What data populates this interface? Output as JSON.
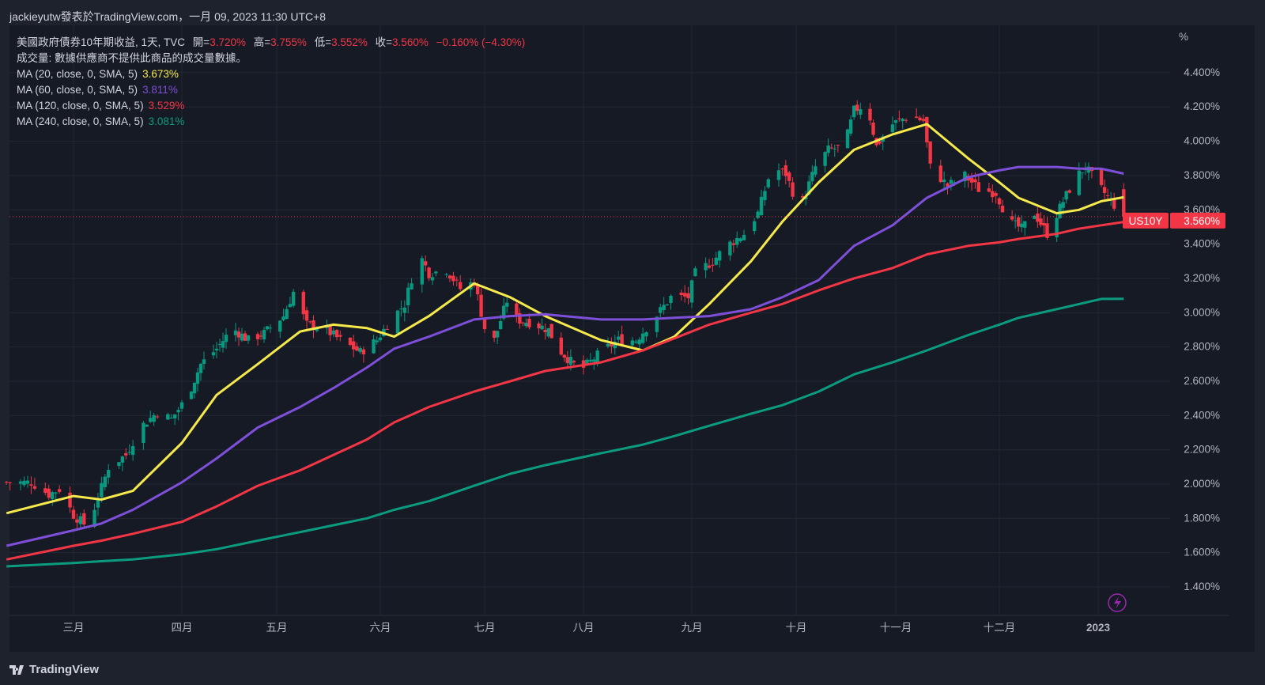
{
  "header": {
    "publisher": "jackieyutw發表於TradingView.com，一月 09, 2023 11:30 UTC+8"
  },
  "legend": {
    "symbol_desc": "美國政府債券10年期收益, 1天, TVC",
    "open_label": "開=",
    "open": "3.720%",
    "high_label": "高=",
    "high": "3.755%",
    "low_label": "低=",
    "low": "3.552%",
    "close_label": "收=",
    "close": "3.560%",
    "change": "−0.160% (−4.30%)",
    "volume_note": "成交量: 數據供應商不提供此商品的成交量數據。",
    "ma": [
      {
        "label": "MA (20, close, 0, SMA, 5)",
        "value": "3.673%",
        "color": "#f5e94b"
      },
      {
        "label": "MA (60, close, 0, SMA, 5)",
        "value": "3.811%",
        "color": "#7e4fd8"
      },
      {
        "label": "MA (120, close, 0, SMA, 5)",
        "value": "3.529%",
        "color": "#f23645"
      },
      {
        "label": "MA (240, close, 0, SMA, 5)",
        "value": "3.081%",
        "color": "#0b9b7e"
      }
    ]
  },
  "price_tag": {
    "symbol": "US10Y",
    "value": "3.560%"
  },
  "brand": "TradingView",
  "colors": {
    "up": "#089981",
    "down": "#f23645",
    "background": "#161a25",
    "grid": "#232733"
  },
  "chart_data": {
    "type": "candlestick",
    "ylabel": "%",
    "ylim": [
      1.3,
      4.5
    ],
    "y_ticks": [
      "1.400%",
      "1.600%",
      "1.800%",
      "2.000%",
      "2.200%",
      "2.400%",
      "2.600%",
      "2.800%",
      "3.000%",
      "3.200%",
      "3.400%",
      "3.600%",
      "3.800%",
      "4.000%",
      "4.200%",
      "4.400%"
    ],
    "x_ticks": [
      {
        "label": "三月",
        "date": "2022-03-01"
      },
      {
        "label": "四月",
        "date": "2022-04-01"
      },
      {
        "label": "五月",
        "date": "2022-05-01"
      },
      {
        "label": "六月",
        "date": "2022-06-01"
      },
      {
        "label": "七月",
        "date": "2022-07-01"
      },
      {
        "label": "八月",
        "date": "2022-08-01"
      },
      {
        "label": "九月",
        "date": "2022-09-01"
      },
      {
        "label": "十月",
        "date": "2022-10-01"
      },
      {
        "label": "十一月",
        "date": "2022-11-01"
      },
      {
        "label": "十二月",
        "date": "2022-12-01"
      },
      {
        "label": "2023",
        "date": "2023-01-01"
      }
    ],
    "grid": true,
    "close_path": [
      [
        "2022-02-10",
        2.01
      ],
      [
        "2022-02-17",
        2.01
      ],
      [
        "2022-02-22",
        1.94
      ],
      [
        "2022-02-25",
        1.97
      ],
      [
        "2022-03-01",
        1.82
      ],
      [
        "2022-03-05",
        1.75
      ],
      [
        "2022-03-08",
        1.92
      ],
      [
        "2022-03-11",
        2.1
      ],
      [
        "2022-03-16",
        2.17
      ],
      [
        "2022-03-20",
        2.33
      ],
      [
        "2022-03-25",
        2.42
      ],
      [
        "2022-03-29",
        2.38
      ],
      [
        "2022-04-03",
        2.52
      ],
      [
        "2022-04-07",
        2.7
      ],
      [
        "2022-04-12",
        2.79
      ],
      [
        "2022-04-17",
        2.91
      ],
      [
        "2022-04-22",
        2.84
      ],
      [
        "2022-04-27",
        2.88
      ],
      [
        "2022-05-03",
        2.98
      ],
      [
        "2022-05-06",
        3.12
      ],
      [
        "2022-05-10",
        2.93
      ],
      [
        "2022-05-15",
        2.91
      ],
      [
        "2022-05-20",
        2.84
      ],
      [
        "2022-05-26",
        2.77
      ],
      [
        "2022-05-31",
        2.84
      ],
      [
        "2022-06-04",
        2.96
      ],
      [
        "2022-06-08",
        3.05
      ],
      [
        "2022-06-12",
        3.35
      ],
      [
        "2022-06-15",
        3.23
      ],
      [
        "2022-06-20",
        3.25
      ],
      [
        "2022-06-24",
        3.14
      ],
      [
        "2022-06-28",
        3.18
      ],
      [
        "2022-07-01",
        2.91
      ],
      [
        "2022-07-04",
        2.84
      ],
      [
        "2022-07-08",
        3.07
      ],
      [
        "2022-07-11",
        2.96
      ],
      [
        "2022-07-16",
        2.94
      ],
      [
        "2022-07-21",
        2.9
      ],
      [
        "2022-07-24",
        2.79
      ],
      [
        "2022-07-31",
        2.66
      ],
      [
        "2022-08-06",
        2.77
      ],
      [
        "2022-08-11",
        2.84
      ],
      [
        "2022-08-16",
        2.84
      ],
      [
        "2022-08-21",
        2.96
      ],
      [
        "2022-08-26",
        3.09
      ],
      [
        "2022-08-31",
        3.09
      ],
      [
        "2022-09-02",
        3.23
      ],
      [
        "2022-09-07",
        3.3
      ],
      [
        "2022-09-11",
        3.39
      ],
      [
        "2022-09-16",
        3.46
      ],
      [
        "2022-09-20",
        3.58
      ],
      [
        "2022-09-24",
        3.85
      ],
      [
        "2022-09-28",
        3.81
      ],
      [
        "2022-10-02",
        3.6
      ],
      [
        "2022-10-07",
        3.85
      ],
      [
        "2022-10-11",
        3.95
      ],
      [
        "2022-10-16",
        3.97
      ],
      [
        "2022-10-19",
        4.18
      ],
      [
        "2022-10-23",
        4.22
      ],
      [
        "2022-10-26",
        3.97
      ],
      [
        "2022-10-30",
        4.09
      ],
      [
        "2022-11-05",
        4.15
      ],
      [
        "2022-11-09",
        4.12
      ],
      [
        "2022-11-11",
        3.85
      ],
      [
        "2022-11-16",
        3.74
      ],
      [
        "2022-11-21",
        3.8
      ],
      [
        "2022-11-25",
        3.72
      ],
      [
        "2022-11-30",
        3.7
      ],
      [
        "2022-12-04",
        3.53
      ],
      [
        "2022-12-08",
        3.49
      ],
      [
        "2022-12-12",
        3.58
      ],
      [
        "2022-12-16",
        3.46
      ],
      [
        "2022-12-21",
        3.65
      ],
      [
        "2022-12-25",
        3.79
      ],
      [
        "2022-12-28",
        3.85
      ],
      [
        "2023-01-02",
        3.72
      ],
      [
        "2023-01-09",
        3.56
      ]
    ],
    "last_candle": {
      "date": "2023-01-09",
      "open": 3.72,
      "high": 3.755,
      "low": 3.552,
      "close": 3.56
    },
    "ma_dates": [
      "2022-02-10",
      "2022-03-01",
      "2022-03-09",
      "2022-03-18",
      "2022-04-01",
      "2022-04-12",
      "2022-04-25",
      "2022-05-08",
      "2022-05-18",
      "2022-05-28",
      "2022-06-05",
      "2022-06-15",
      "2022-06-28",
      "2022-07-09",
      "2022-07-20",
      "2022-08-06",
      "2022-08-18",
      "2022-08-27",
      "2022-09-06",
      "2022-09-18",
      "2022-09-27",
      "2022-10-08",
      "2022-10-19",
      "2022-10-31",
      "2022-11-10",
      "2022-11-22",
      "2022-12-01",
      "2022-12-07",
      "2022-12-19",
      "2022-12-26",
      "2023-01-02",
      "2023-01-09"
    ],
    "series": [
      {
        "name": "MA (20, close, 0, SMA, 5)",
        "color": "#f5e94b",
        "values": [
          1.83,
          1.93,
          1.91,
          1.96,
          2.24,
          2.52,
          2.7,
          2.89,
          2.93,
          2.91,
          2.86,
          2.98,
          3.17,
          3.09,
          2.98,
          2.84,
          2.78,
          2.86,
          3.05,
          3.3,
          3.53,
          3.76,
          3.95,
          4.04,
          4.1,
          3.9,
          3.76,
          3.67,
          3.58,
          3.6,
          3.65,
          3.673
        ]
      },
      {
        "name": "MA (60, close, 0, SMA, 5)",
        "color": "#7e4fd8",
        "values": [
          1.64,
          1.73,
          1.77,
          1.85,
          2.01,
          2.15,
          2.33,
          2.45,
          2.56,
          2.68,
          2.79,
          2.86,
          2.96,
          2.98,
          2.99,
          2.96,
          2.96,
          2.97,
          2.98,
          3.02,
          3.09,
          3.19,
          3.39,
          3.51,
          3.67,
          3.79,
          3.83,
          3.85,
          3.85,
          3.84,
          3.84,
          3.811
        ]
      },
      {
        "name": "MA (120, close, 0, SMA, 5)",
        "color": "#f23645",
        "values": [
          1.56,
          1.64,
          1.67,
          1.71,
          1.78,
          1.87,
          1.99,
          2.08,
          2.17,
          2.26,
          2.36,
          2.45,
          2.54,
          2.6,
          2.66,
          2.71,
          2.78,
          2.85,
          2.93,
          3.0,
          3.05,
          3.13,
          3.2,
          3.26,
          3.34,
          3.39,
          3.41,
          3.43,
          3.46,
          3.49,
          3.51,
          3.529
        ]
      },
      {
        "name": "MA (240, close, 0, SMA, 5)",
        "color": "#0b9b7e",
        "values": [
          1.52,
          1.54,
          1.55,
          1.56,
          1.59,
          1.62,
          1.67,
          1.72,
          1.76,
          1.8,
          1.85,
          1.9,
          1.99,
          2.06,
          2.11,
          2.18,
          2.23,
          2.28,
          2.34,
          2.41,
          2.46,
          2.54,
          2.64,
          2.71,
          2.78,
          2.87,
          2.93,
          2.97,
          3.02,
          3.05,
          3.08,
          3.081
        ]
      }
    ]
  }
}
